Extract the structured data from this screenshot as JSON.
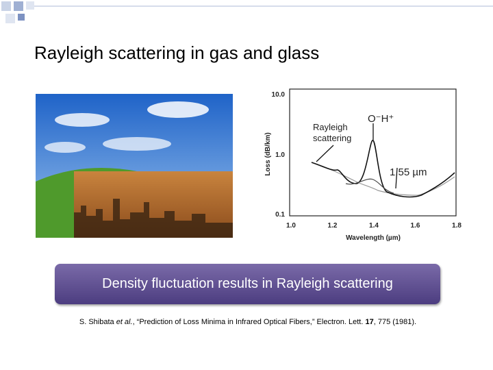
{
  "title": "Rayleigh scattering in gas and glass",
  "figure": {
    "y_axis_label": "Loss (dB/km)",
    "x_axis_label": "Wavelength (µm)",
    "y_tick_labels": [
      "10.0",
      "1.0",
      "0.1"
    ],
    "x_tick_labels": [
      "1.0",
      "1.2",
      "1.4",
      "1.6",
      "1.8"
    ],
    "annotations": [
      "Rayleigh",
      "scattering",
      "O⁻H⁺",
      "1.55 µm"
    ]
  },
  "callout": "Density fluctuation results in Rayleigh scattering",
  "citation": [
    "S. Shibata ",
    "et al.",
    ", “Prediction of Loss Minima in Infrared Optical Fibers,” Electron. Lett. ",
    "17",
    ", 775 (1981)."
  ]
}
